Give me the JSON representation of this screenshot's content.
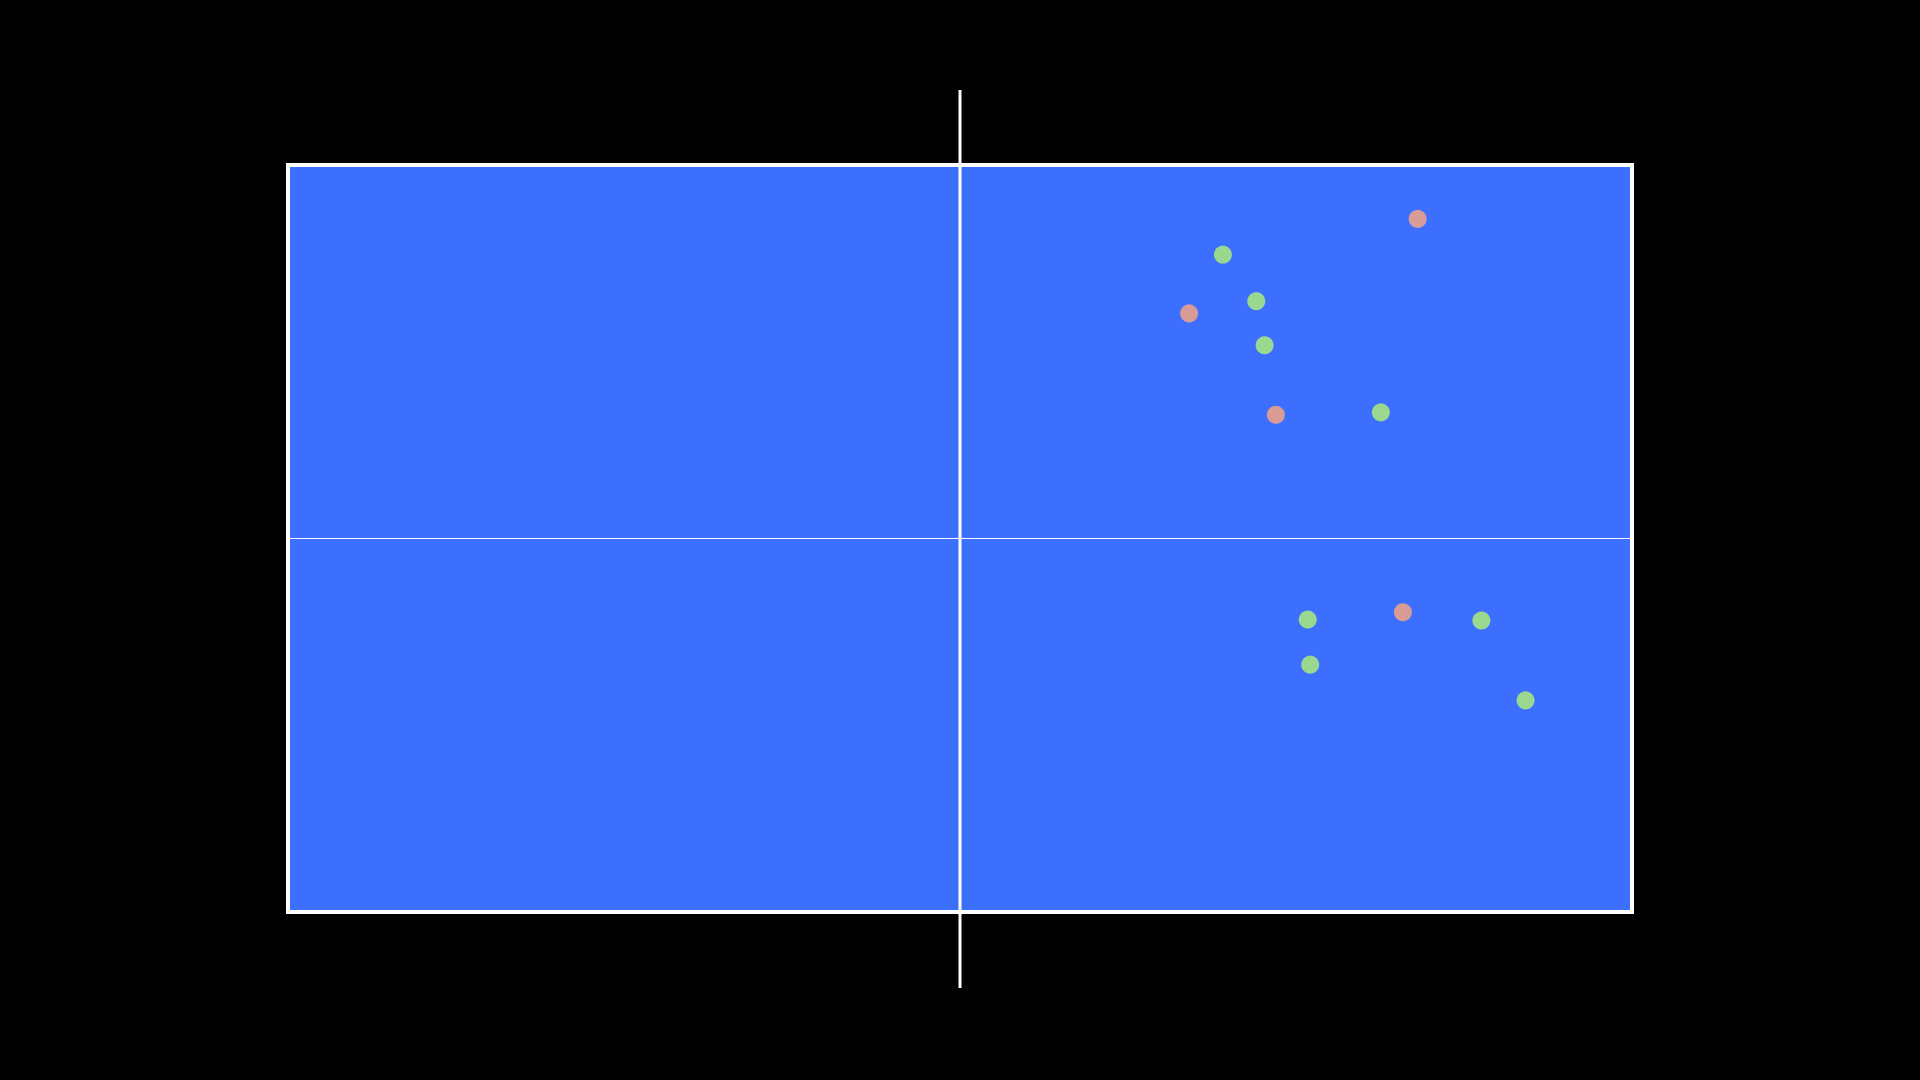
{
  "chart_data": {
    "type": "scatter",
    "xlim": [
      0,
      274
    ],
    "ylim": [
      0,
      152.5
    ],
    "series": [
      {
        "color": "#9ad88f",
        "x": [
          190.6,
          197.4,
          199.1,
          222.8,
          207.9,
          243.3,
          208.4,
          252.3
        ],
        "values": [
          18.3,
          27.8,
          36.8,
          50.5,
          92.8,
          93.0,
          102.0,
          109.3
        ]
      },
      {
        "color": "#d99b96",
        "x": [
          230.3,
          183.7,
          201.4,
          227.3
        ],
        "values": [
          11.0,
          30.3,
          51.0,
          91.3
        ]
      }
    ]
  }
}
